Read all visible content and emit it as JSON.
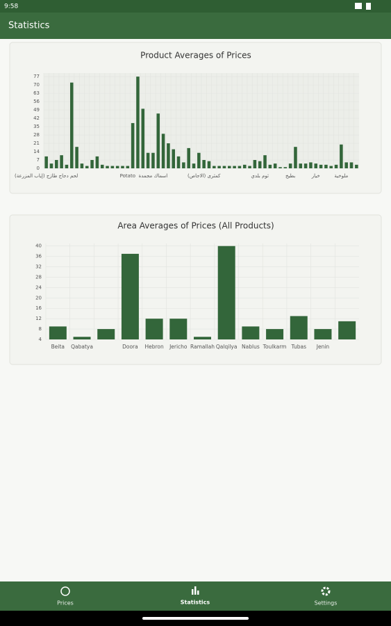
{
  "status_bar": {
    "time": "9:58"
  },
  "app_bar": {
    "title": "Statistics"
  },
  "chart_data": [
    {
      "type": "bar",
      "title": "Product Averages of Prices",
      "color": "#33663a",
      "grid": true,
      "categories": [
        "لحم دجاج طازج (إياب المزرعة)",
        null,
        null,
        null,
        null,
        null,
        null,
        null,
        null,
        null,
        null,
        null,
        null,
        null,
        null,
        null,
        "Potato",
        null,
        null,
        null,
        null,
        "اسماك مجمدة",
        null,
        null,
        null,
        null,
        null,
        null,
        null,
        null,
        null,
        "كمثرى (الاجاص)",
        null,
        null,
        null,
        null,
        null,
        null,
        null,
        null,
        null,
        null,
        "ثوم بلدي",
        null,
        null,
        null,
        null,
        null,
        "بطيخ",
        null,
        null,
        null,
        null,
        "خيار",
        null,
        null,
        null,
        null,
        "ملوخية",
        null,
        null,
        null
      ],
      "values": [
        10,
        4,
        7,
        11,
        3,
        72,
        18,
        4,
        2,
        7,
        10,
        3,
        2,
        2,
        2,
        2,
        2,
        38,
        77,
        50,
        13,
        13,
        46,
        29,
        21,
        16,
        10,
        5,
        17,
        4,
        13,
        7,
        6,
        2,
        2,
        2,
        2,
        2,
        2,
        3,
        2,
        7,
        6,
        11,
        3,
        4,
        1,
        1,
        4,
        18,
        4,
        4,
        5,
        4,
        3,
        3,
        2,
        3,
        20,
        5,
        5,
        3
      ],
      "ylim": [
        0,
        80
      ],
      "yticks": [
        0,
        7,
        14,
        21,
        28,
        35,
        42,
        49,
        56,
        63,
        70,
        77
      ]
    },
    {
      "type": "bar",
      "title": "Area Averages of Prices (All Products)",
      "color": "#33663a",
      "grid": true,
      "categories": [
        "Beita",
        "Qabatya",
        null,
        "Doora",
        "Hebron",
        "Jericho",
        "Ramallah",
        "Qalqilya",
        "Nablus",
        "Toulkarm",
        "Tubas",
        "Jenin",
        null
      ],
      "values": [
        9,
        5,
        8,
        37,
        12,
        12,
        5,
        40,
        9,
        8,
        13,
        8,
        11
      ],
      "ylim": [
        4,
        41
      ],
      "yticks": [
        4,
        8,
        12,
        16,
        20,
        24,
        28,
        32,
        36,
        40
      ]
    }
  ],
  "nav": {
    "items": [
      "Prices",
      "Statistics",
      "Settings"
    ]
  }
}
